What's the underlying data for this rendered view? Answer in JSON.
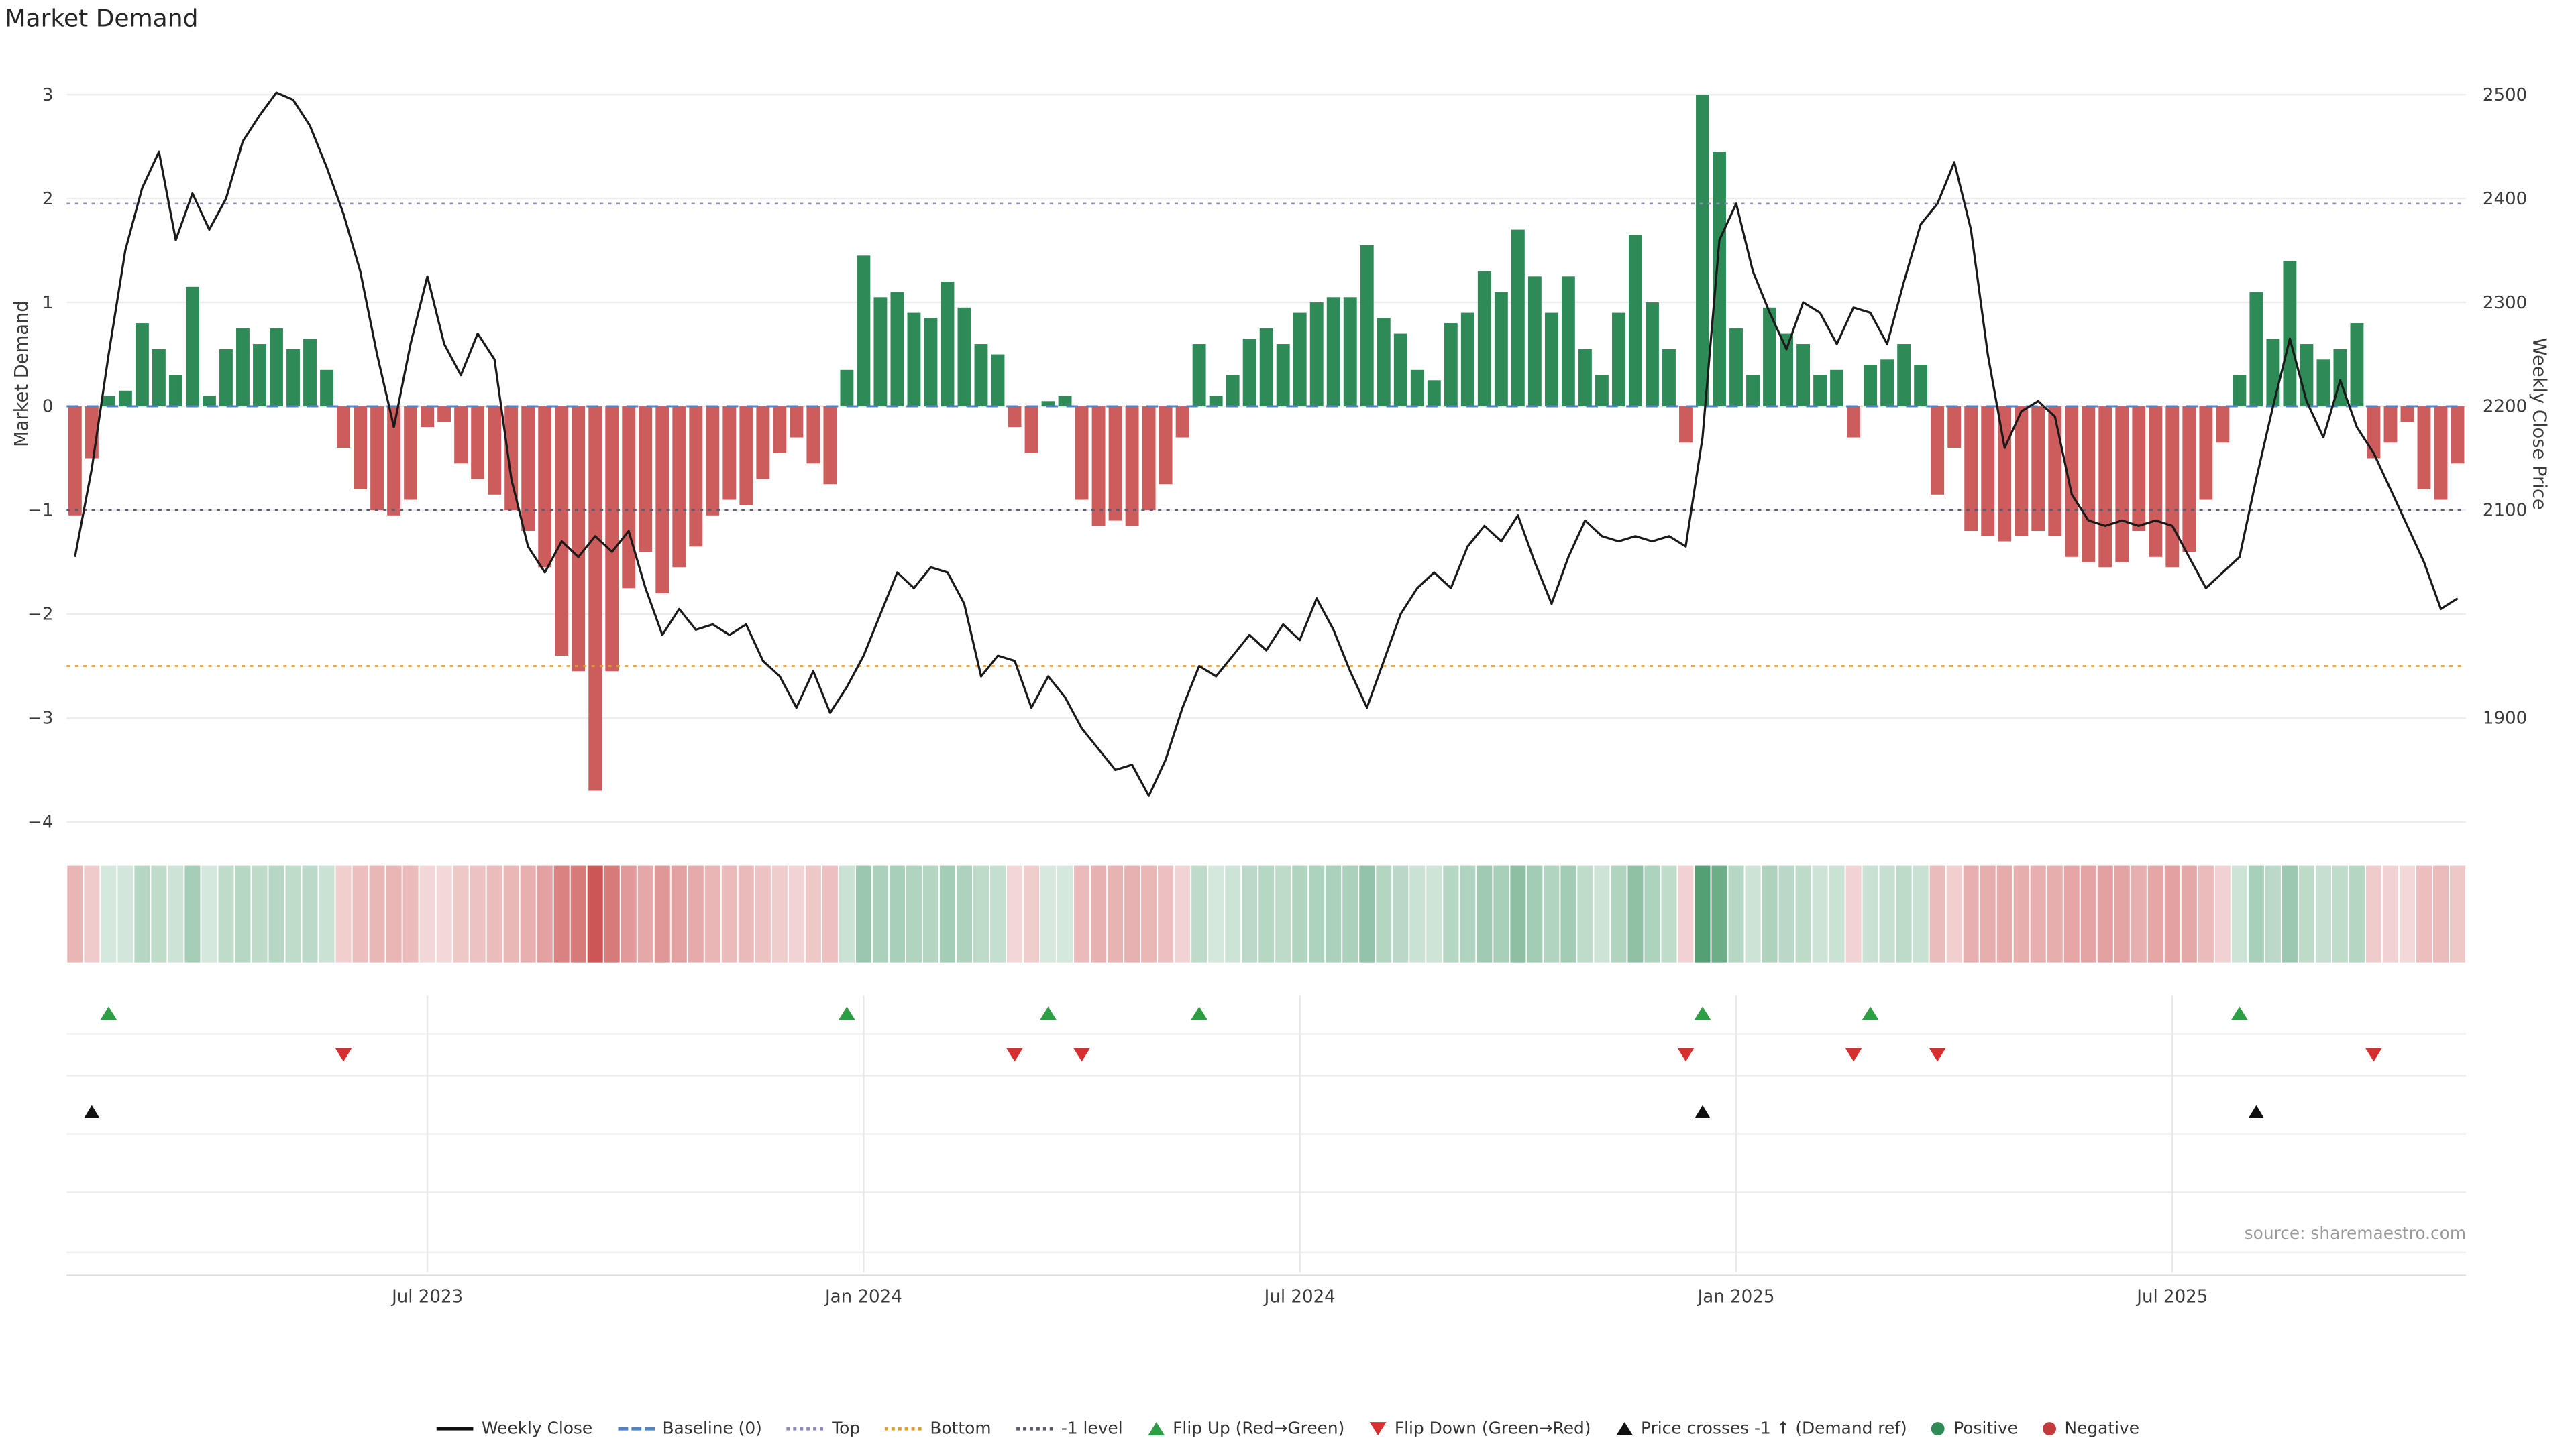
{
  "title": "Market Demand",
  "source_note": "source: sharemaestro.com",
  "axes": {
    "left_label": "Market Demand",
    "right_label": "Weekly Close Price",
    "left_ticks": [
      3,
      2,
      1,
      0,
      -1,
      -2,
      -3,
      -4
    ],
    "right_ticks": [
      2500,
      2400,
      2300,
      2200,
      2100,
      1900
    ],
    "x_tick_labels": [
      "Jul 2023",
      "Jan 2024",
      "Jul 2024",
      "Jan 2025",
      "Jul 2025"
    ],
    "x_tick_weeks": [
      21,
      47,
      73,
      99,
      125
    ]
  },
  "chart_data": {
    "type": "bar+line",
    "x_unit": "week",
    "n_weeks": 143,
    "x_range_note": "weekly data from Feb 2023 to Oct 2025",
    "series": [
      {
        "name": "Market Demand",
        "type": "bar",
        "axis": "left",
        "values": [
          -1.05,
          -0.5,
          0.1,
          0.15,
          0.8,
          0.55,
          0.3,
          1.15,
          0.1,
          0.55,
          0.75,
          0.6,
          0.75,
          0.55,
          0.65,
          0.35,
          -0.4,
          -0.8,
          -1.0,
          -1.05,
          -0.9,
          -0.2,
          -0.15,
          -0.55,
          -0.7,
          -0.85,
          -1.0,
          -1.2,
          -1.55,
          -2.4,
          -2.55,
          -3.7,
          -2.55,
          -1.75,
          -1.4,
          -1.8,
          -1.55,
          -1.35,
          -1.05,
          -0.9,
          -0.95,
          -0.7,
          -0.45,
          -0.3,
          -0.55,
          -0.75,
          0.35,
          1.45,
          1.05,
          1.1,
          0.9,
          0.85,
          1.2,
          0.95,
          0.6,
          0.5,
          -0.2,
          -0.45,
          0.05,
          0.1,
          -0.9,
          -1.15,
          -1.1,
          -1.15,
          -1.0,
          -0.75,
          -0.3,
          0.6,
          0.1,
          0.3,
          0.65,
          0.75,
          0.6,
          0.9,
          1.0,
          1.05,
          1.05,
          1.55,
          0.85,
          0.7,
          0.35,
          0.25,
          0.8,
          0.9,
          1.3,
          1.1,
          1.7,
          1.25,
          0.9,
          1.25,
          0.55,
          0.3,
          0.9,
          1.65,
          1.0,
          0.55,
          -0.35,
          3.0,
          2.45,
          0.75,
          0.3,
          0.95,
          0.7,
          0.6,
          0.3,
          0.35,
          -0.3,
          0.4,
          0.45,
          0.6,
          0.4,
          -0.85,
          -0.4,
          -1.2,
          -1.25,
          -1.3,
          -1.25,
          -1.2,
          -1.25,
          -1.45,
          -1.5,
          -1.55,
          -1.5,
          -1.2,
          -1.45,
          -1.55,
          -1.4,
          -0.9,
          -0.35,
          0.3,
          1.1,
          0.65,
          1.4,
          0.6,
          0.45,
          0.55,
          0.8,
          -0.5,
          -0.35,
          -0.15,
          -0.8,
          -0.9,
          -0.55
        ]
      },
      {
        "name": "Weekly Close",
        "type": "line",
        "axis": "right",
        "values": [
          2055,
          2140,
          2250,
          2350,
          2410,
          2445,
          2360,
          2405,
          2370,
          2400,
          2455,
          2480,
          2502,
          2495,
          2470,
          2430,
          2385,
          2330,
          2250,
          2180,
          2260,
          2325,
          2260,
          2230,
          2270,
          2245,
          2130,
          2065,
          2040,
          2070,
          2055,
          2075,
          2060,
          2080,
          2025,
          1980,
          2005,
          1985,
          1990,
          1980,
          1990,
          1955,
          1940,
          1910,
          1945,
          1905,
          1930,
          1960,
          2000,
          2040,
          2025,
          2045,
          2040,
          2010,
          1940,
          1960,
          1955,
          1910,
          1940,
          1920,
          1890,
          1870,
          1850,
          1855,
          1825,
          1860,
          1910,
          1950,
          1940,
          1960,
          1980,
          1965,
          1990,
          1975,
          2015,
          1985,
          1945,
          1910,
          1955,
          2000,
          2025,
          2040,
          2025,
          2065,
          2085,
          2070,
          2095,
          2050,
          2010,
          2055,
          2090,
          2075,
          2070,
          2075,
          2070,
          2075,
          2065,
          2170,
          2360,
          2395,
          2330,
          2290,
          2255,
          2300,
          2290,
          2260,
          2295,
          2290,
          2260,
          2320,
          2375,
          2395,
          2435,
          2370,
          2250,
          2160,
          2195,
          2205,
          2190,
          2115,
          2090,
          2085,
          2090,
          2085,
          2090,
          2085,
          2055,
          2025,
          2040,
          2055,
          2130,
          2200,
          2265,
          2205,
          2170,
          2225,
          2180,
          2155,
          2120,
          2085,
          2050,
          2005,
          2015
        ]
      }
    ],
    "reference_lines": [
      {
        "name": "Baseline (0)",
        "value": 0,
        "style": "dashed",
        "color": "#4f83c4"
      },
      {
        "name": "Top",
        "value": 1.95,
        "style": "dotted",
        "color": "#8d8dbd"
      },
      {
        "name": "-1 level",
        "value": -1,
        "style": "dotted",
        "color": "#5c5c6e"
      },
      {
        "name": "Bottom",
        "value": -2.5,
        "style": "dotted",
        "color": "#e0a030"
      }
    ],
    "markers": {
      "flip_up_weeks": [
        2,
        46,
        58,
        67,
        97,
        107,
        129
      ],
      "flip_down_weeks": [
        16,
        56,
        60,
        96,
        106,
        111,
        137
      ],
      "price_cross_minus1_weeks": [
        1,
        97,
        130
      ]
    },
    "ylim_left": [
      -4.2,
      3.3
    ],
    "right_axis_alignment": {
      "demand_0_equals_price": 2200,
      "price_per_demand_unit": 100
    },
    "heatmap_strip": "weekly demand values shaded green (positive) / red (negative), darker = larger magnitude"
  },
  "legend": [
    {
      "label": "Weekly Close",
      "glyph": "line",
      "color": "#111111"
    },
    {
      "label": "Baseline (0)",
      "glyph": "dash",
      "color": "#4f83c4"
    },
    {
      "label": "Top",
      "glyph": "dot",
      "color": "#8d8dbd"
    },
    {
      "label": "Bottom",
      "glyph": "dot",
      "color": "#e0a030"
    },
    {
      "label": "-1 level",
      "glyph": "dot",
      "color": "#5c5c6e"
    },
    {
      "label": "Flip Up (Red→Green)",
      "glyph": "tri-up",
      "color": "#2e9e44"
    },
    {
      "label": "Flip Down (Green→Red)",
      "glyph": "tri-down",
      "color": "#d62f2f"
    },
    {
      "label": "Price crosses -1 ↑ (Demand ref)",
      "glyph": "tri-up",
      "color": "#111111"
    },
    {
      "label": "Positive",
      "glyph": "circle",
      "color": "#2e8b57"
    },
    {
      "label": "Negative",
      "glyph": "circle",
      "color": "#c23b3b"
    }
  ],
  "colors": {
    "bar_positive": "#2e8b57",
    "bar_negative": "#cd5c5c",
    "price_line": "#1a1a1a",
    "flip_up": "#2e9e44",
    "flip_down": "#d62f2f",
    "price_cross": "#111111",
    "grid": "#ededed",
    "tick_text": "#3c3c3c"
  }
}
